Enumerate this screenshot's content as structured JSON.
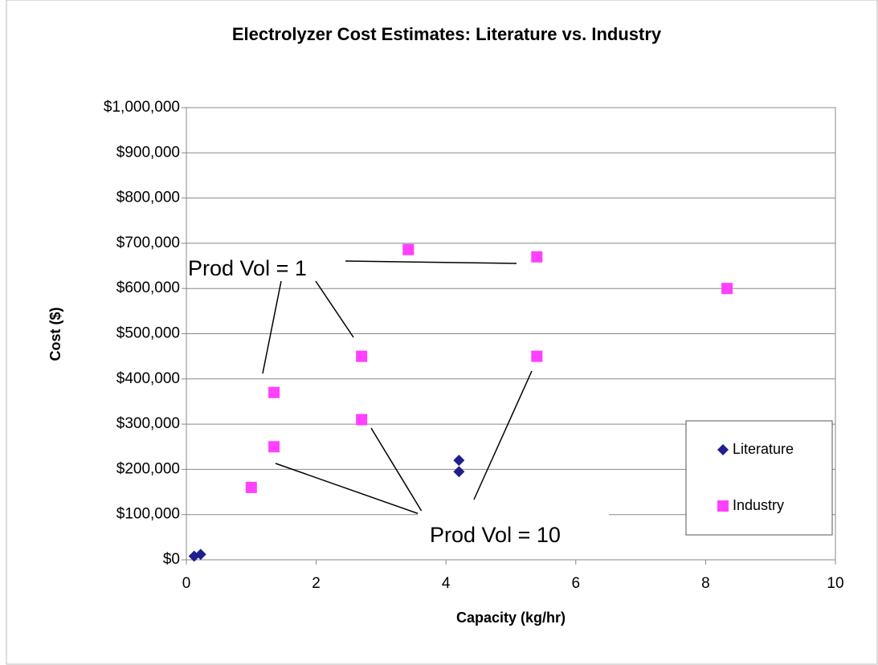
{
  "chart_data": {
    "type": "scatter",
    "title": "Electrolyzer Cost Estimates: Literature vs. Industry",
    "x_label": "Capacity (kg/hr)",
    "y_label": "Cost ($)",
    "xlim": [
      0,
      10
    ],
    "xticks": [
      0,
      2,
      4,
      6,
      8,
      10
    ],
    "ylim": [
      0,
      1000000
    ],
    "yticks": [
      {
        "value": 0,
        "label": "$0"
      },
      {
        "value": 100000,
        "label": "$100,000"
      },
      {
        "value": 200000,
        "label": "$200,000"
      },
      {
        "value": 300000,
        "label": "$300,000"
      },
      {
        "value": 400000,
        "label": "$400,000"
      },
      {
        "value": 500000,
        "label": "$500,000"
      },
      {
        "value": 600000,
        "label": "$600,000"
      },
      {
        "value": 700000,
        "label": "$700,000"
      },
      {
        "value": 800000,
        "label": "$800,000"
      },
      {
        "value": 900000,
        "label": "$900,000"
      },
      {
        "value": 1000000,
        "label": "$1,000,000"
      }
    ],
    "grid": true,
    "legend": "lower right",
    "series": [
      {
        "name": "Literature",
        "color": "#1f1f8f",
        "marker": "diamond",
        "x": [
          0.12,
          0.22,
          4.2,
          4.2
        ],
        "values": [
          8000,
          12000,
          220000,
          195000
        ]
      },
      {
        "name": "Industry",
        "color": "#ff40ff",
        "marker": "square",
        "x": [
          1.0,
          1.35,
          1.35,
          2.7,
          2.7,
          3.42,
          5.4,
          5.4,
          8.33
        ],
        "values": [
          160000,
          250000,
          370000,
          310000,
          450000,
          686000,
          670000,
          450000,
          600000
        ]
      }
    ],
    "annotations": [
      "Prod Vol = 1",
      "Prod Vol = 10"
    ]
  }
}
